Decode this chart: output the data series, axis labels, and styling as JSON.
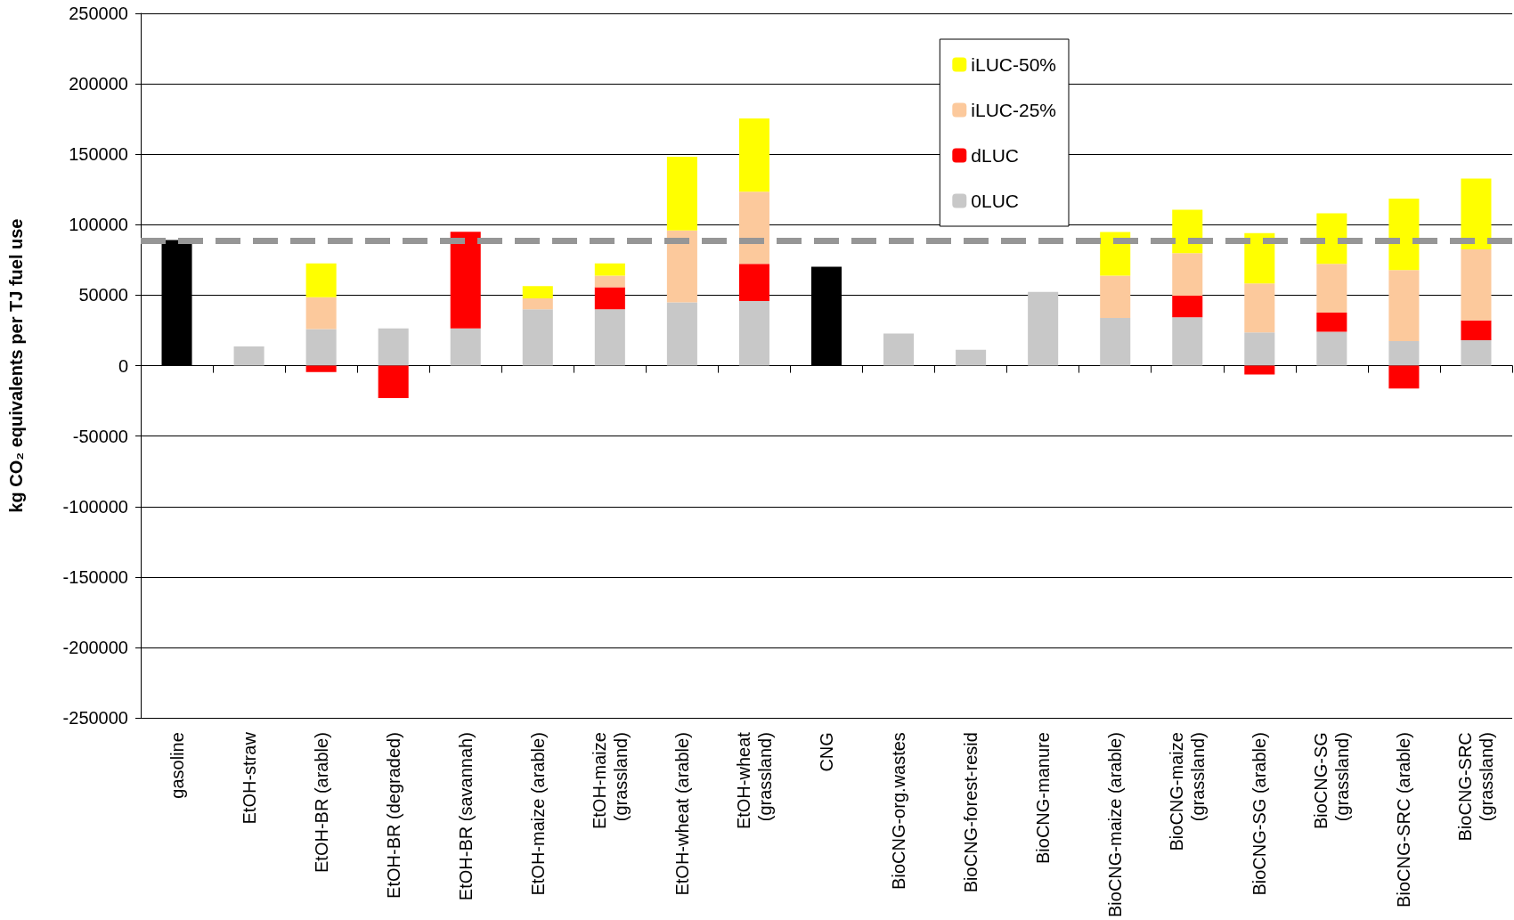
{
  "chart_data": {
    "type": "bar",
    "stacked": true,
    "ylabel": "kg CO₂ equivalents per TJ fuel use",
    "categories": [
      "gasoline",
      "EtOH-straw",
      "EtOH-BR (arable)",
      "EtOH-BR (degraded)",
      "EtOH-BR (savannah)",
      "EtOH-maize (arable)",
      "EtOH-maize\n(grassland)",
      "EtOH-wheat (arable)",
      "EtOH-wheat\n(grassland)",
      "CNG",
      "BioCNG-org.wastes",
      "BioCNG-forest-resid",
      "BioCNG-manure",
      "BioCNG-maize (arable)",
      "BioCNG-maize\n(grassland)",
      "BioCNG-SG (arable)",
      "BioCNG-SG\n(grassland)",
      "BioCNG-SRC (arable)",
      "BioCNG-SRC\n(grassland)"
    ],
    "series": [
      {
        "name": "0LUC",
        "color": "#c8c8c8",
        "colors": [
          "#000000",
          "#c8c8c8",
          "#c8c8c8",
          "#c8c8c8",
          "#c8c8c8",
          "#c8c8c8",
          "#c8c8c8",
          "#c8c8c8",
          "#c8c8c8",
          "#000000",
          "#c8c8c8",
          "#c8c8c8",
          "#c8c8c8",
          "#c8c8c8",
          "#c8c8c8",
          "#c8c8c8",
          "#c8c8c8",
          "#c8c8c8",
          "#c8c8c8"
        ],
        "values": [
          89100,
          13600,
          26000,
          26500,
          26500,
          40000,
          40000,
          45000,
          45800,
          70200,
          22800,
          11300,
          52400,
          33800,
          34300,
          23600,
          24100,
          17500,
          18100
        ]
      },
      {
        "name": "dLUC",
        "color": "#ff0000",
        "values": [
          null,
          null,
          -4500,
          -23000,
          68500,
          null,
          15700,
          null,
          26500,
          null,
          null,
          null,
          null,
          null,
          15400,
          -6300,
          13600,
          -16200,
          14100
        ]
      },
      {
        "name": "iLUC-25%",
        "color": "#fcc99c",
        "values": [
          null,
          null,
          22500,
          null,
          null,
          7800,
          8200,
          51000,
          51200,
          null,
          null,
          null,
          null,
          30100,
          30100,
          34800,
          34600,
          50300,
          50300
        ]
      },
      {
        "name": "iLUC-50%",
        "color": "#ffff00",
        "values": [
          null,
          null,
          24000,
          null,
          null,
          8600,
          8600,
          52300,
          52000,
          null,
          null,
          null,
          null,
          30900,
          30900,
          35600,
          35800,
          50800,
          50200
        ]
      }
    ],
    "ylim": [
      -250000,
      250000
    ],
    "yticks": [
      -250000,
      -200000,
      -150000,
      -100000,
      -50000,
      0,
      50000,
      100000,
      150000,
      200000,
      250000
    ],
    "ref_lines": [
      {
        "axis": "y",
        "value": 88400,
        "color": "#969696",
        "line_style": "dashed"
      }
    ],
    "grid": "y",
    "legend": "top right"
  }
}
